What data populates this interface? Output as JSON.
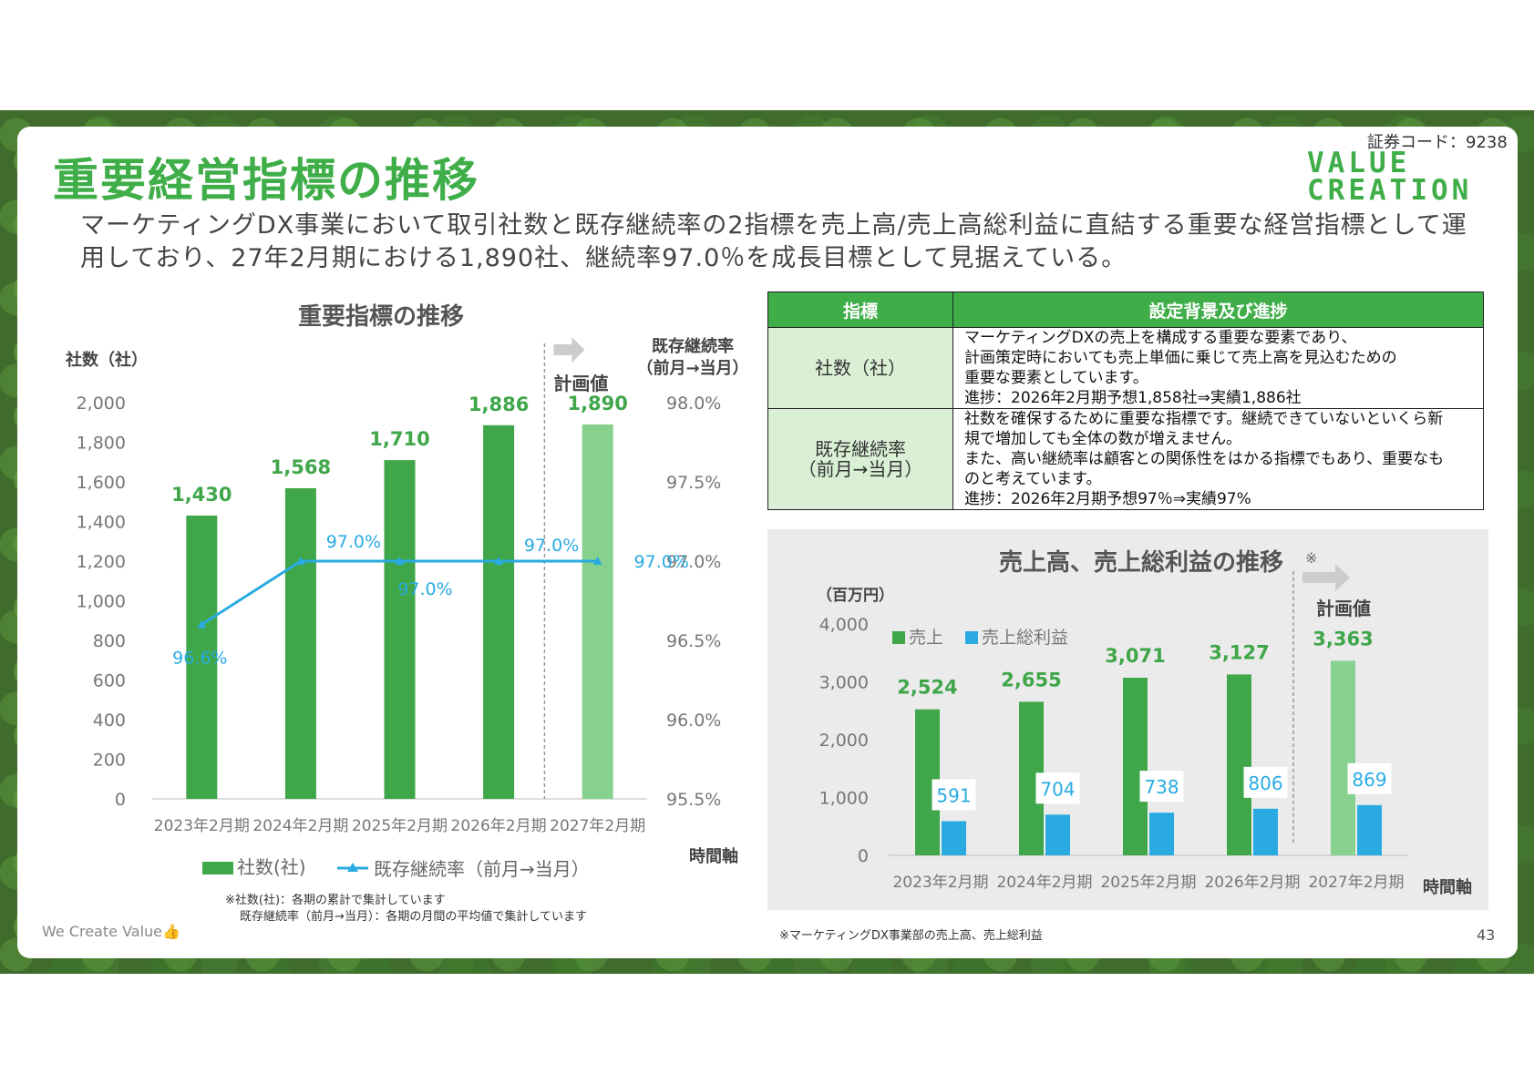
{
  "page": {
    "title": "重要経営指標の推移",
    "securities_code": "証券コード：9238",
    "logo_line1": "VALUE",
    "logo_line2": "CREATION",
    "description": "マーケティングDX事業において取引社数と既存継続率の2指標を売上高/売上高総利益に直結する重要な経営指標として運用しており、27年2月期における1,890社、継続率97.0％を成長目標として見据えている。",
    "footer_left": "We Create Value👍",
    "page_number": "43",
    "footnote_right": "※マーケティングDX事業部の売上高、売上総利益",
    "notes_line1": "※社数(社)：各期の累計で集計しています",
    "notes_line2": "既存継続率（前月→当月）：各期の月間の平均値で集計しています"
  },
  "table": {
    "headers": [
      "指標",
      "設定背景及び進捗"
    ],
    "rows": [
      {
        "label": "社数（社）",
        "lines": [
          "マーケティングDXの売上を構成する重要な要素であり、",
          "計画策定時においても売上単価に乗じて売上高を見込むための",
          "重要な要素としています。",
          "進捗：2026年2月期予想1,858社⇒実績1,886社"
        ]
      },
      {
        "label_line1": "既存継続率",
        "label_line2": "（前月→当月）",
        "lines": [
          "社数を確保するために重要な指標です。継続できていないといくら新",
          "規で増加しても全体の数が増えません。",
          "また、高い継続率は顧客との関係性をはかる指標でもあり、重要なも",
          "のと考えています。",
          "進捗：2026年2月期予想97％⇒実績97%"
        ]
      }
    ]
  },
  "chart_data": [
    {
      "type": "bar",
      "title": "重要指標の推移",
      "ylabel": "社数（社）",
      "y2label_line1": "既存継続率",
      "y2label_line2": "（前月→当月）",
      "xlabel": "時間軸",
      "plan_label": "計画値",
      "categories": [
        "2023年2月期",
        "2024年2月期",
        "2025年2月期",
        "2026年2月期",
        "2027年2月期"
      ],
      "ylim": [
        0,
        2000
      ],
      "y_ticks": [
        "0",
        "200",
        "400",
        "600",
        "800",
        "1,000",
        "1,200",
        "1,400",
        "1,600",
        "1,800",
        "2,000"
      ],
      "y2lim": [
        95.5,
        98.0
      ],
      "y2_ticks": [
        "95.5%",
        "96.0%",
        "96.5%",
        "97.0%",
        "97.5%",
        "98.0%"
      ],
      "series": [
        {
          "name": "社数(社)",
          "values": [
            1430,
            1568,
            1710,
            1886,
            1890
          ],
          "labels": [
            "1,430",
            "1,568",
            "1,710",
            "1,886",
            "1,890"
          ],
          "color": "#3fa64a",
          "plan_color": "#86d18d"
        },
        {
          "name": "既存継続率（前月→当月）",
          "values": [
            96.6,
            97.0,
            97.0,
            97.0,
            97.0
          ],
          "labels": [
            "96.6%",
            "97.0%",
            "97.0%",
            "97.0%",
            "97.0%"
          ],
          "color": "#29abe2"
        }
      ],
      "legend": "bottom"
    },
    {
      "type": "bar",
      "title": "売上高、売上総利益の推移",
      "title_mark": "※",
      "ylabel": "（百万円）",
      "xlabel": "時間軸",
      "plan_label": "計画値",
      "categories": [
        "2023年2月期",
        "2024年2月期",
        "2025年2月期",
        "2026年2月期",
        "2027年2月期"
      ],
      "ylim": [
        0,
        4000
      ],
      "y_ticks": [
        "0",
        "1,000",
        "2,000",
        "3,000",
        "4,000"
      ],
      "series": [
        {
          "name": "売上",
          "values": [
            2524,
            2655,
            3071,
            3127,
            3363
          ],
          "labels": [
            "2,524",
            "2,655",
            "3,071",
            "3,127",
            "3,363"
          ],
          "color": "#3fa64a",
          "plan_color": "#86d18d"
        },
        {
          "name": "売上総利益",
          "values": [
            591,
            704,
            738,
            806,
            869
          ],
          "labels": [
            "591",
            "704",
            "738",
            "806",
            "869"
          ],
          "color": "#29abe2"
        }
      ],
      "legend": "top-left"
    }
  ]
}
